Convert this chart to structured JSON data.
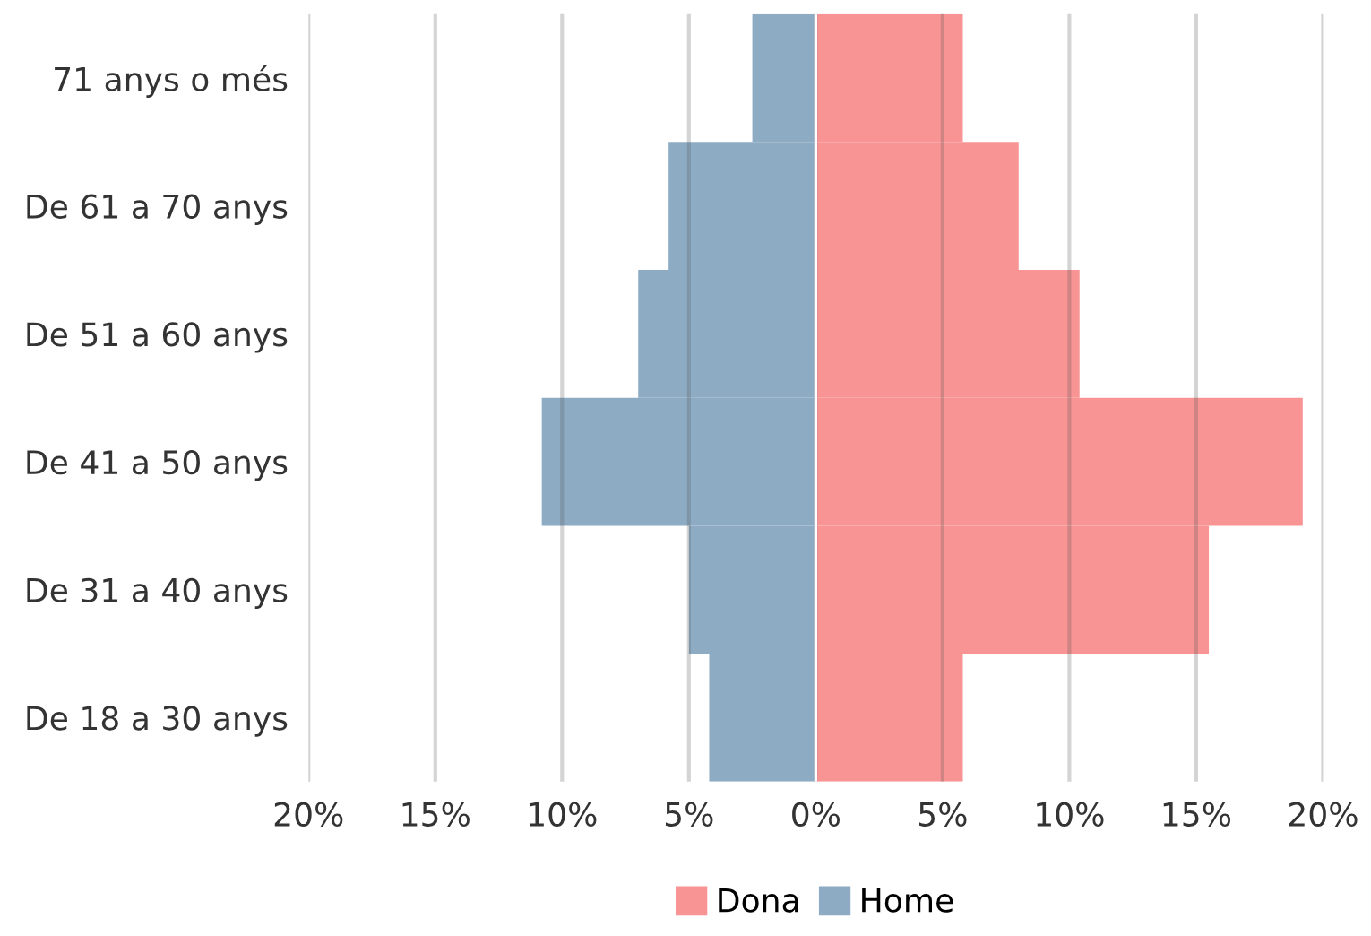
{
  "chart_data": {
    "type": "bar",
    "orientation": "horizontal",
    "stacked": true,
    "categories": [
      "71 anys o més",
      "De 61 a 70 anys",
      "De 51 a 60 anys",
      "De 41 a 50 anys",
      "De 31 a 40 anys",
      "De 18 a 30 anys"
    ],
    "series": [
      {
        "name": "Dona",
        "color": "#f99494",
        "values": [
          5.8,
          8.0,
          10.4,
          19.2,
          15.5,
          5.8
        ]
      },
      {
        "name": "Home",
        "color": "#8eabc4",
        "values": [
          -2.5,
          -5.8,
          -7.0,
          -10.8,
          -5.0,
          -4.2
        ]
      }
    ],
    "xlim": [
      -20,
      20
    ],
    "xticks": [
      {
        "value": -20,
        "label": "20%"
      },
      {
        "value": -15,
        "label": "15%"
      },
      {
        "value": -10,
        "label": "10%"
      },
      {
        "value": -5,
        "label": "5%"
      },
      {
        "value": 0,
        "label": "0%"
      },
      {
        "value": 5,
        "label": "5%"
      },
      {
        "value": 10,
        "label": "10%"
      },
      {
        "value": 15,
        "label": "15%"
      },
      {
        "value": 20,
        "label": "20%"
      }
    ],
    "grid": "x",
    "legend": "bottom"
  }
}
